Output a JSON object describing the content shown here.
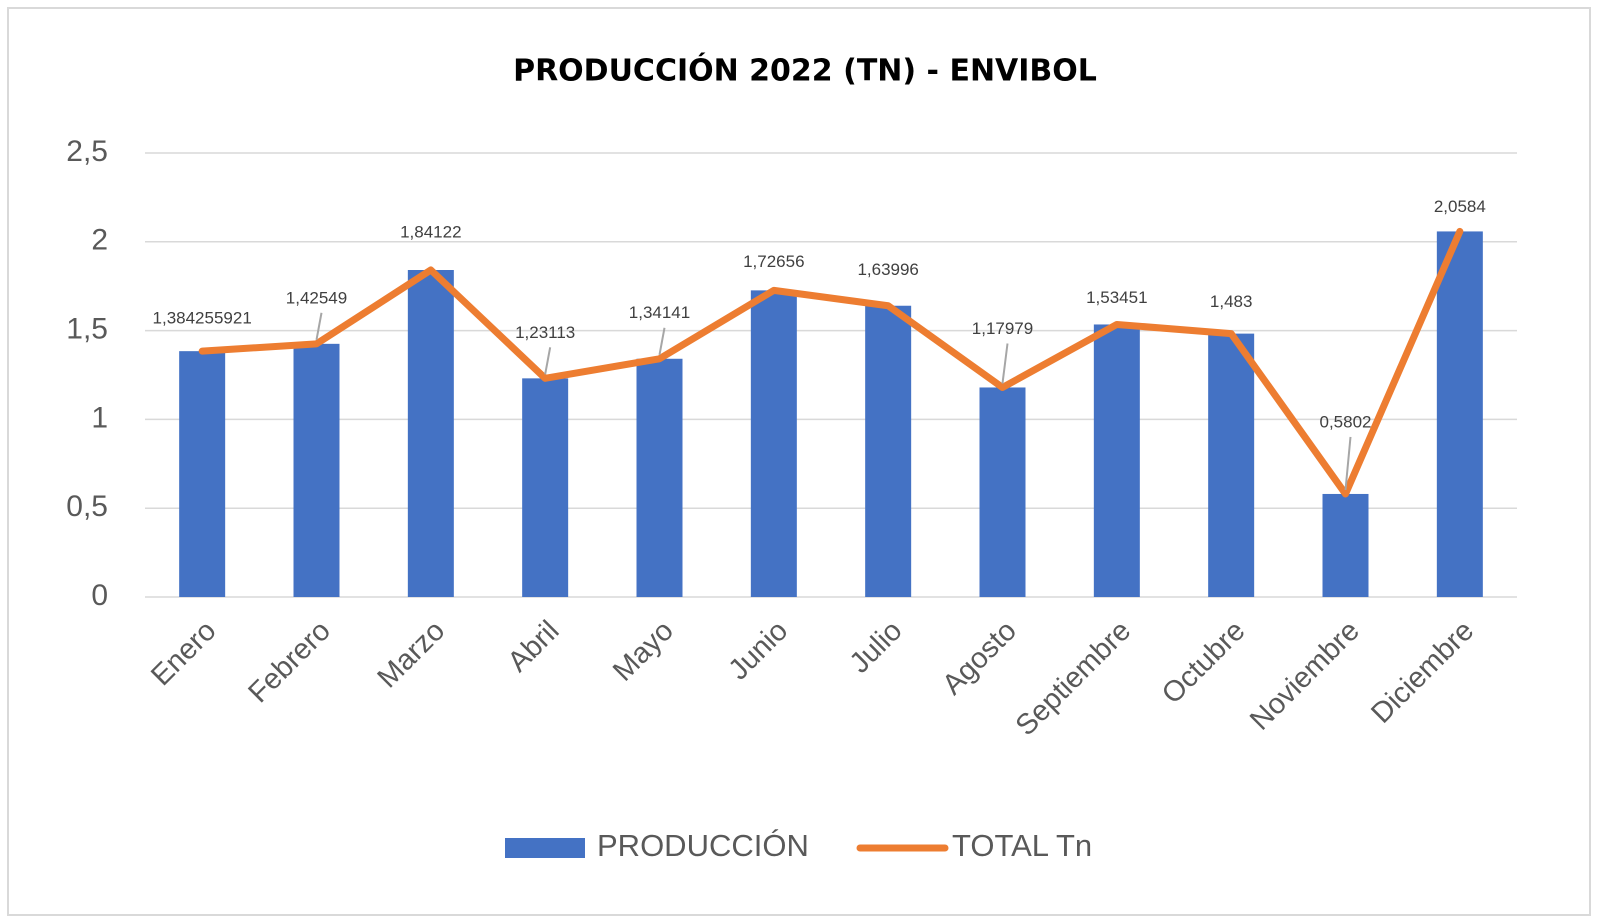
{
  "chart_data": {
    "type": "bar_line",
    "title": "PRODUCCIÓN 2022 (TN) - ENVIBOL",
    "categories": [
      "Enero",
      "Febrero",
      "Marzo",
      "Abril",
      "Mayo",
      "Junio",
      "Julio",
      "Agosto",
      "Septiembre",
      "Octubre",
      "Noviembre",
      "Diciembre"
    ],
    "series": [
      {
        "name": "PRODUCCIÓN",
        "type": "bar",
        "color": "#4472c4",
        "values": [
          1.384255921,
          1.42549,
          1.84122,
          1.23113,
          1.34141,
          1.72656,
          1.63996,
          1.17979,
          1.53451,
          1.483,
          0.5802,
          2.0584
        ]
      },
      {
        "name": "TOTAL Tn",
        "type": "line",
        "color": "#ed7d31",
        "values": [
          1.384255921,
          1.42549,
          1.84122,
          1.23113,
          1.34141,
          1.72656,
          1.63996,
          1.17979,
          1.53451,
          1.483,
          0.5802,
          2.0584
        ],
        "value_labels": [
          "1,384255921",
          "1,42549",
          "1,84122",
          "1,23113",
          "1,34141",
          "1,72656",
          "1,63996",
          "1,17979",
          "1,53451",
          "1,483",
          "0,5802",
          "2,0584"
        ]
      }
    ],
    "ylim": [
      0,
      2.5
    ],
    "yticks": [
      0,
      {
        "value": 0.5,
        "label": "0,5"
      },
      1,
      {
        "value": 1.5,
        "label": "1,5"
      },
      2,
      {
        "value": 2.5,
        "label": "2,5"
      }
    ],
    "grid": true,
    "legend": "bottom"
  }
}
